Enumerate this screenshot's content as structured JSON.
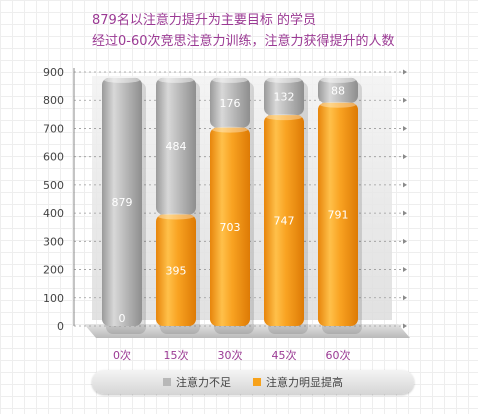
{
  "title_line1": "879名以注意力提升为主要目标 的学员",
  "title_line2": "经过0-60次竞思注意力训练，注意力获得提升的人数",
  "chart_data": {
    "type": "bar",
    "stacked": true,
    "categories": [
      "0次",
      "15次",
      "30次",
      "45次",
      "60次"
    ],
    "series": [
      {
        "name": "注意力明显提高",
        "values": [
          0,
          395,
          703,
          747,
          791
        ],
        "color": "#f7a21b"
      },
      {
        "name": "注意力不足",
        "values": [
          879,
          484,
          176,
          132,
          88
        ],
        "color": "#b8b8b8"
      }
    ],
    "ylim": [
      0,
      900
    ],
    "yticks": [
      0,
      100,
      200,
      300,
      400,
      500,
      600,
      700,
      800,
      900
    ],
    "grid": true,
    "legend_position": "bottom",
    "xlabel": "",
    "ylabel": ""
  }
}
